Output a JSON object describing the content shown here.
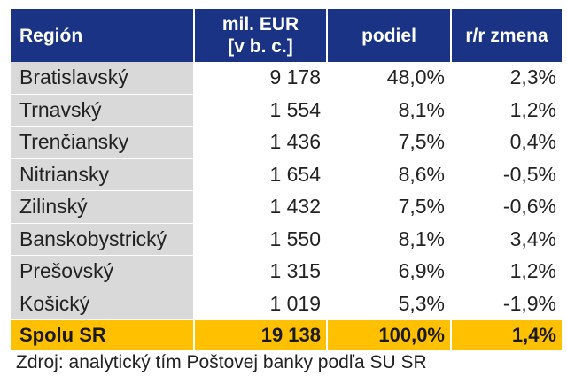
{
  "header": {
    "region": "Región",
    "mil_line1": "mil. EUR",
    "mil_line2": "[v b. c.]",
    "share": "podiel",
    "yoy": "r/r zmena"
  },
  "rows": [
    {
      "region": "Bratislavský",
      "value": "9 178",
      "share": "48,0%",
      "yoy": "2,3%"
    },
    {
      "region": "Trnavský",
      "value": "1 554",
      "share": "8,1%",
      "yoy": "1,2%"
    },
    {
      "region": "Trenčiansky",
      "value": "1 436",
      "share": "7,5%",
      "yoy": "0,4%"
    },
    {
      "region": "Nitriansky",
      "value": "1 654",
      "share": "8,6%",
      "yoy": "-0,5%"
    },
    {
      "region": "Zilinský",
      "value": "1 432",
      "share": "7,5%",
      "yoy": "-0,6%"
    },
    {
      "region": "Banskobystrický",
      "value": "1 550",
      "share": "8,1%",
      "yoy": "3,4%"
    },
    {
      "region": "Prešovský",
      "value": "1 315",
      "share": "6,9%",
      "yoy": "1,2%"
    },
    {
      "region": "Košický",
      "value": "1 019",
      "share": "5,3%",
      "yoy": "-1,9%"
    }
  ],
  "total": {
    "region": "Spolu SR",
    "value": "19 138",
    "share": "100,0%",
    "yoy": "1,4%"
  },
  "source": "Zdroj: analytický tím Poštovej banky podľa SU SR",
  "colors": {
    "header_bg": "#1a3384",
    "total_bg": "#ffc000",
    "name_bg": "#d9d9d9"
  }
}
